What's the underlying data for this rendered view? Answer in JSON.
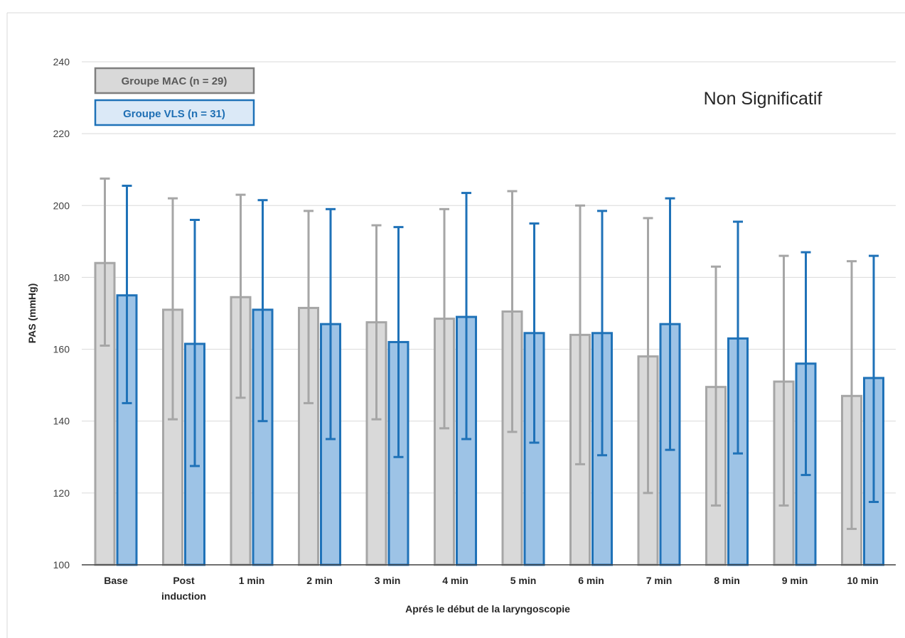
{
  "chart_data": {
    "type": "bar",
    "categories": [
      [
        "Base"
      ],
      [
        "Post",
        "induction"
      ],
      [
        "1 min"
      ],
      [
        "2 min"
      ],
      [
        "3 min"
      ],
      [
        "4 min"
      ],
      [
        "5 min"
      ],
      [
        "6 min"
      ],
      [
        "7 min"
      ],
      [
        "8 min"
      ],
      [
        "9 min"
      ],
      [
        "10 min"
      ]
    ],
    "series": [
      {
        "name": "Groupe MAC (n = 29)",
        "fill": "#d9d9d9",
        "stroke": "#a6a6a6",
        "text_color": "#595959",
        "values": [
          184,
          171,
          174.5,
          171.5,
          167.5,
          168.5,
          170.5,
          164,
          158,
          149.5,
          151,
          147
        ],
        "error_upper": [
          207.5,
          202,
          203,
          198.5,
          194.5,
          199,
          204,
          200,
          196.5,
          183,
          186,
          184.5
        ],
        "error_lower": [
          161,
          140.5,
          146.5,
          145,
          140.5,
          138,
          137,
          128,
          120,
          116.5,
          116.5,
          110
        ]
      },
      {
        "name": "Groupe VLS (n = 31)",
        "fill": "#9dc3e6",
        "stroke": "#1f72b8",
        "text_color": "#1f6fb4",
        "legend_fill": "#dbe9f7",
        "values": [
          175,
          161.5,
          171,
          167,
          162,
          169,
          164.5,
          164.5,
          167,
          163,
          156,
          152
        ],
        "error_upper": [
          205.5,
          196,
          201.5,
          199,
          194,
          203.5,
          195,
          198.5,
          202,
          195.5,
          187,
          186
        ],
        "error_lower": [
          145,
          127.5,
          140,
          135,
          130,
          135,
          134,
          130.5,
          132,
          131,
          125,
          117.5
        ]
      }
    ],
    "ylim": [
      100,
      240
    ],
    "yticks": [
      "100",
      "120",
      "140",
      "160",
      "180",
      "200",
      "220",
      "240"
    ],
    "ylabel": "PAS (mmHg)",
    "xlabel": "Aprés le début de la laryngoscopie",
    "annotation": "Non Significatif",
    "legend": "top-left",
    "grid": true
  }
}
